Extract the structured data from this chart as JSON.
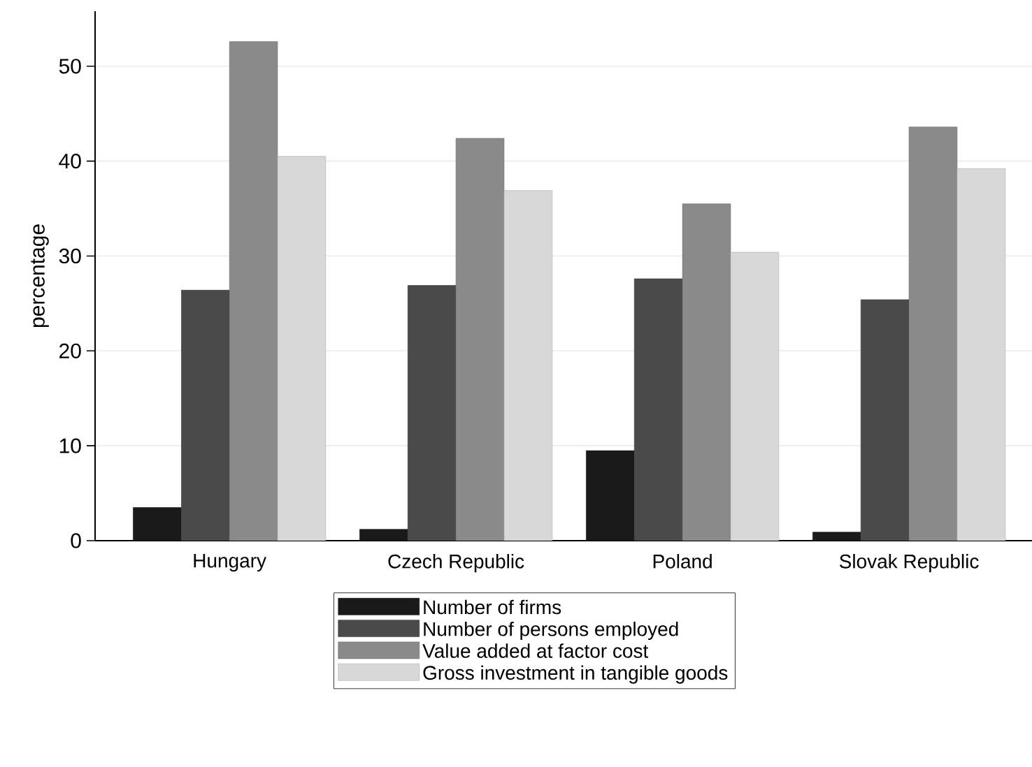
{
  "chart_data": {
    "type": "bar",
    "ylabel": "percentage",
    "categories": [
      "Hungary",
      "Czech Republic",
      "Poland",
      "Slovak Republic"
    ],
    "series": [
      {
        "name": "Number of firms",
        "color": "#1a1a1a",
        "values": [
          3.5,
          1.2,
          9.5,
          0.9
        ]
      },
      {
        "name": "Number of persons employed",
        "color": "#4a4a4a",
        "values": [
          26.4,
          26.9,
          27.6,
          25.4
        ]
      },
      {
        "name": "Value added at factor cost",
        "color": "#8a8a8a",
        "values": [
          52.6,
          42.4,
          35.5,
          43.6
        ]
      },
      {
        "name": "Gross investment in tangible goods",
        "color": "#d8d8d8",
        "values": [
          40.5,
          36.9,
          30.4,
          39.2
        ]
      }
    ],
    "ylim": [
      0,
      55.8
    ],
    "yticks": [
      0,
      10,
      20,
      30,
      40,
      50
    ],
    "grid": "y",
    "legend": "bottom"
  }
}
